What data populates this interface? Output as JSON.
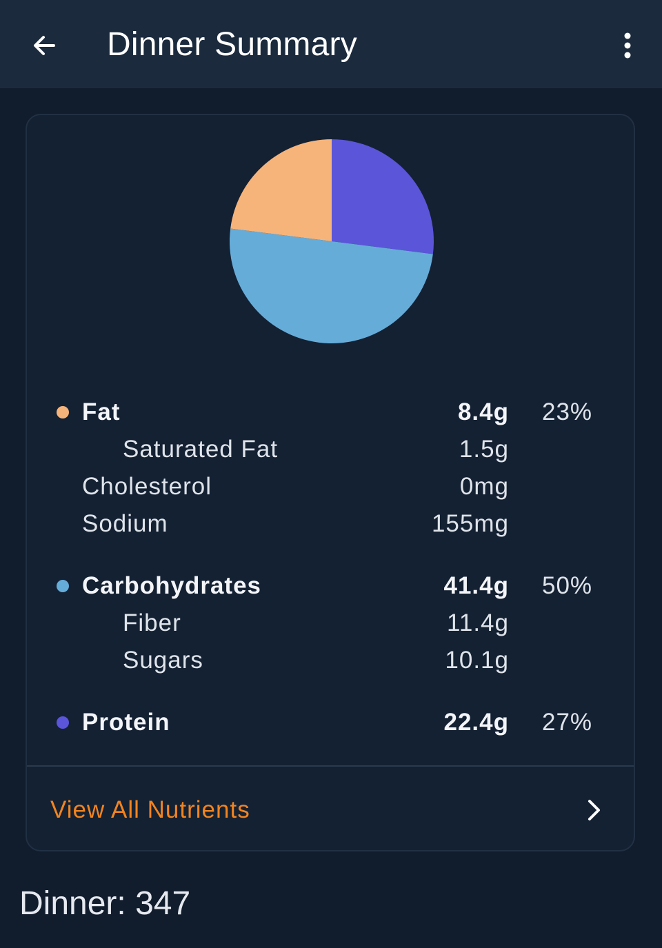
{
  "header": {
    "title": "Dinner Summary",
    "back_icon": "arrow-left-icon",
    "menu_icon": "more-vertical-icon"
  },
  "colors": {
    "fat": "#f6b47b",
    "carbohydrates": "#66acd9",
    "protein": "#5b55d9",
    "accent": "#f2841f"
  },
  "chart_data": {
    "type": "pie",
    "slices": [
      {
        "name": "Protein",
        "value": 27
      },
      {
        "name": "Carbohydrates",
        "value": 50
      },
      {
        "name": "Fat",
        "value": 23
      }
    ]
  },
  "nutrients": {
    "fat": {
      "label": "Fat",
      "amount": "8.4g",
      "percent": "23%"
    },
    "saturated_fat": {
      "label": "Saturated Fat",
      "amount": "1.5g"
    },
    "cholesterol": {
      "label": "Cholesterol",
      "amount": "0mg"
    },
    "sodium": {
      "label": "Sodium",
      "amount": "155mg"
    },
    "carbohydrates": {
      "label": "Carbohydrates",
      "amount": "41.4g",
      "percent": "50%"
    },
    "fiber": {
      "label": "Fiber",
      "amount": "11.4g"
    },
    "sugars": {
      "label": "Sugars",
      "amount": "10.1g"
    },
    "protein": {
      "label": "Protein",
      "amount": "22.4g",
      "percent": "27%"
    }
  },
  "view_all": {
    "label": "View All Nutrients",
    "icon": "chevron-right-icon"
  },
  "footer": {
    "text": "Dinner: 347"
  }
}
